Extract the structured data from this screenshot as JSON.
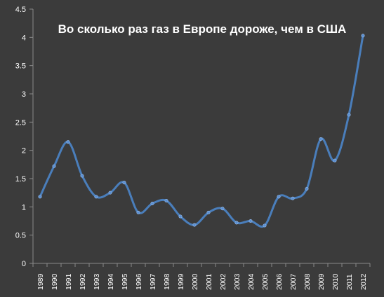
{
  "chart_data": {
    "type": "line",
    "title": "Во сколько раз газ в Европе дороже, чем в США",
    "xlabel": "",
    "ylabel": "",
    "categories": [
      "1989",
      "1990",
      "1991",
      "1992",
      "1993",
      "1994",
      "1995",
      "1996",
      "1997",
      "1998",
      "1999",
      "2000",
      "2001",
      "2002",
      "2003",
      "2004",
      "2005",
      "2006",
      "2007",
      "2008",
      "2009",
      "2010",
      "2011",
      "2012"
    ],
    "series": [
      {
        "values": [
          1.18,
          1.72,
          2.15,
          1.55,
          1.18,
          1.25,
          1.43,
          0.9,
          1.06,
          1.11,
          0.83,
          0.68,
          0.9,
          0.97,
          0.72,
          0.75,
          0.67,
          1.18,
          1.15,
          1.32,
          2.2,
          1.82,
          2.63,
          4.03
        ]
      }
    ],
    "yticks": [
      "0",
      "0.5",
      "1",
      "1.5",
      "2",
      "2.5",
      "3",
      "3.5",
      "4",
      "4.5"
    ],
    "ylim": [
      0,
      4.5
    ],
    "grid": "none",
    "line_color": "#4a7ebb",
    "background_color": "#3b3b3b",
    "text_color": "#ffffff"
  }
}
